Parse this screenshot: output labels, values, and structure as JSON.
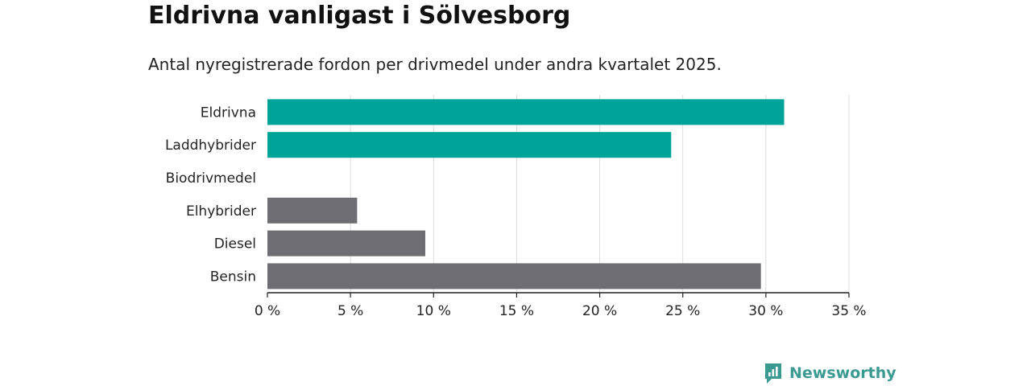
{
  "chart_data": {
    "type": "bar",
    "orientation": "horizontal",
    "title": "Eldrivna vanligast i Sölvesborg",
    "subtitle": "Antal nyregistrerade fordon per drivmedel under andra kvartalet 2025.",
    "categories": [
      "Eldrivna",
      "Laddhybrider",
      "Biodrivmedel",
      "Elhybrider",
      "Diesel",
      "Bensin"
    ],
    "values": [
      31.1,
      24.3,
      0,
      5.4,
      9.5,
      29.7
    ],
    "bar_colors": [
      "#00a398",
      "#00a398",
      "#00a398",
      "#6e6d72",
      "#6e6d72",
      "#6e6d72"
    ],
    "xlim": [
      0,
      35
    ],
    "x_ticks": [
      0,
      5,
      10,
      15,
      20,
      25,
      30,
      35
    ],
    "x_tick_labels": [
      "0 %",
      "5 %",
      "10 %",
      "15 %",
      "20 %",
      "25 %",
      "30 %",
      "35 %"
    ],
    "xlabel": "",
    "ylabel": "",
    "grid": "vertical"
  },
  "brand": {
    "name": "Newsworthy",
    "icon": "newsworthy-logo-icon",
    "color": "#3a9a92"
  }
}
